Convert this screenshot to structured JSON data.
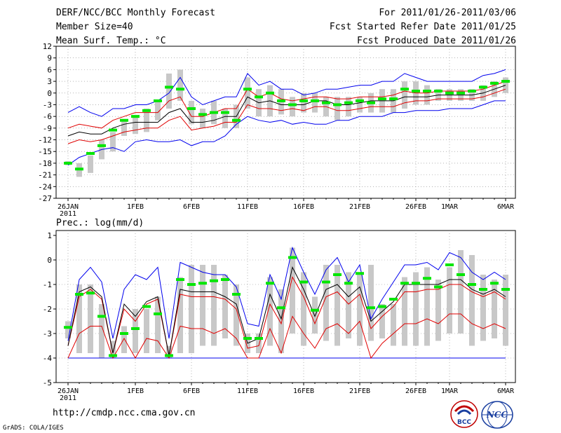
{
  "header": {
    "title": "DERF/NCC/BCC Monthly Forecast",
    "member_size": "Member Size=40",
    "variable": "Mean Surf. Temp.: °C",
    "forecast_period": "For 2011/01/26-2011/03/06",
    "started_refer": "Fcst Started Refer Date 2011/01/25",
    "produced": "Fcst Produced Date 2011/01/26"
  },
  "footer": {
    "url": "http://cmdp.ncc.cma.gov.cn",
    "credit": "GrADS: COLA/IGES",
    "logo_bcc": "BCC",
    "logo_ncc": "NCC"
  },
  "colors": {
    "box": "#c8c8c8",
    "median": "#00e600",
    "mean": "#000000",
    "spread": "#e00000",
    "extreme": "#0000ee",
    "grid": "#888888"
  },
  "chart_data": [
    {
      "type": "ensemble-boxplot",
      "title": "Mean Surf. Temp.: °C",
      "ylabel": "°C",
      "ylim": [
        -27,
        12
      ],
      "yticks": [
        12,
        9,
        6,
        3,
        0,
        -3,
        -6,
        -9,
        -12,
        -15,
        -18,
        -21,
        -24,
        -27
      ],
      "xticks": [
        {
          "day": 0,
          "label": "26JAN",
          "sub": "2011"
        },
        {
          "day": 6,
          "label": "1FEB"
        },
        {
          "day": 11,
          "label": "6FEB"
        },
        {
          "day": 16,
          "label": "11FEB"
        },
        {
          "day": 21,
          "label": "16FEB"
        },
        {
          "day": 26,
          "label": "21FEB"
        },
        {
          "day": 31,
          "label": "26FEB"
        },
        {
          "day": 34,
          "label": "1MAR"
        },
        {
          "day": 39,
          "label": "6MAR"
        }
      ],
      "box_low": [
        -18.5,
        -21.5,
        -20.5,
        -17,
        -15,
        -11,
        -10.5,
        -10,
        -7,
        -4,
        -2,
        -8,
        -9,
        -8,
        -9,
        -9,
        -4,
        -6,
        -6,
        -5.5,
        -6,
        -5,
        -5,
        -6,
        -7,
        -6,
        -5,
        -5,
        -5,
        -5,
        -4,
        -3,
        -3,
        -2,
        -2,
        -2,
        -2,
        -2,
        -1,
        0
      ],
      "box_high": [
        -17.5,
        -18,
        -16,
        -12,
        -10,
        -7,
        -6,
        -4,
        -2,
        5,
        6,
        -2,
        -4,
        -2,
        -4,
        -3,
        4,
        1,
        2,
        1,
        -1,
        0,
        0,
        -1,
        -1,
        -1,
        -1,
        0,
        1,
        1,
        3,
        3,
        2,
        1,
        1,
        1,
        1,
        2,
        3,
        4
      ],
      "median": [
        -18,
        -19.5,
        -15.5,
        -13.5,
        -9.5,
        -7,
        -6,
        -4.5,
        -2,
        1.5,
        1,
        -4,
        -5.5,
        -5,
        -5,
        -7,
        1,
        -1,
        0,
        -2,
        -3,
        -2,
        -2,
        -2.5,
        -3,
        -2.5,
        -2,
        -2.5,
        -1.5,
        -1.5,
        1,
        0.5,
        0.5,
        0.5,
        0,
        0,
        0.5,
        1.5,
        2.5,
        3
      ],
      "mean": [
        -11,
        -10,
        -10.5,
        -10.5,
        -9,
        -8,
        -7.5,
        -7.5,
        -7.5,
        -5,
        -4,
        -7.5,
        -7.5,
        -7,
        -6,
        -6,
        -1,
        -2.5,
        -2,
        -3,
        -3,
        -3,
        -2,
        -2,
        -3,
        -3,
        -2.5,
        -2,
        -2,
        -2,
        -1,
        -1,
        -1,
        -0.5,
        -0.5,
        -0.5,
        -0.5,
        0,
        1,
        2
      ],
      "spread_high": [
        -9,
        -8,
        -8.5,
        -9,
        -7,
        -6,
        -5,
        -5,
        -5,
        -2,
        -1,
        -6,
        -6,
        -5,
        -4,
        -4,
        1,
        -1,
        0,
        -1.5,
        -2,
        -1.5,
        -1,
        -1,
        -1.5,
        -1.5,
        -1,
        -1,
        -1,
        -0.5,
        0.5,
        0,
        0,
        0.5,
        0.5,
        0.5,
        0.5,
        1,
        2,
        3
      ],
      "spread_low": [
        -13,
        -12,
        -12.5,
        -12,
        -11,
        -10,
        -9.5,
        -9,
        -9,
        -7,
        -6,
        -9.5,
        -9,
        -8.5,
        -7.5,
        -7.5,
        -3,
        -4,
        -4,
        -4.5,
        -4,
        -4.5,
        -3.5,
        -3.5,
        -4.5,
        -4.5,
        -4,
        -3.5,
        -3.5,
        -3.5,
        -2.5,
        -2,
        -2,
        -1.5,
        -1.5,
        -1.5,
        -1.5,
        -1,
        0,
        1
      ],
      "max_line": [
        -5,
        -3.5,
        -5,
        -6,
        -4,
        -4,
        -3,
        -3,
        -2,
        0,
        4,
        -1,
        -3,
        -2,
        -1,
        -1,
        5,
        2,
        3,
        1,
        1,
        -0.5,
        0,
        1,
        1,
        1.5,
        2,
        2,
        3,
        3,
        5,
        4,
        3,
        3,
        3,
        3,
        3,
        4.5,
        5,
        6
      ],
      "min_line": [
        -18.5,
        -16.5,
        -15.5,
        -14.5,
        -14,
        -15,
        -12.5,
        -12,
        -12.5,
        -12.5,
        -12,
        -13.5,
        -12.5,
        -12.5,
        -11,
        -8,
        -6,
        -7,
        -7.5,
        -7,
        -8,
        -7.5,
        -8,
        -8,
        -7,
        -7,
        -6,
        -6,
        -6,
        -5,
        -5,
        -4.5,
        -4.5,
        -4.5,
        -4,
        -4,
        -4,
        -3,
        -2,
        -2
      ]
    },
    {
      "type": "ensemble-boxplot",
      "title": "Prec.: log(mm/d)",
      "ylabel": "log(mm/d)",
      "ylim": [
        -5,
        1.2
      ],
      "yticks": [
        1,
        0,
        -1,
        -2,
        -3,
        -4,
        -5
      ],
      "xticks": [
        {
          "day": 0,
          "label": "26JAN",
          "sub": "2011"
        },
        {
          "day": 6,
          "label": "1FEB"
        },
        {
          "day": 11,
          "label": "6FEB"
        },
        {
          "day": 16,
          "label": "11FEB"
        },
        {
          "day": 21,
          "label": "16FEB"
        },
        {
          "day": 26,
          "label": "21FEB"
        },
        {
          "day": 31,
          "label": "26FEB"
        },
        {
          "day": 34,
          "label": "1MAR"
        },
        {
          "day": 39,
          "label": "6MAR"
        }
      ],
      "box_low": [
        -3.2,
        -3.8,
        -3.8,
        -4,
        -4,
        -3.8,
        -3.8,
        -3.8,
        -3.8,
        -4,
        -3.8,
        -3.8,
        -3.5,
        -3.5,
        -3.2,
        -3.5,
        -3.8,
        -3.8,
        -3.5,
        -3.8,
        -3,
        -3.5,
        -3,
        -3.3,
        -3.5,
        -3.2,
        -3.5,
        -3.3,
        -3.2,
        -3.5,
        -3.5,
        -3.5,
        -3.5,
        -3.3,
        -3,
        -3,
        -3.5,
        -3.3,
        -3.2,
        -3.5
      ],
      "box_high": [
        -2.5,
        -1,
        -1,
        -1.8,
        -3.3,
        -2.7,
        -2,
        -2,
        -1.5,
        -3.5,
        -0.7,
        -0.2,
        -0.2,
        -0.2,
        -0.6,
        -1,
        -3,
        -3,
        -0.7,
        -1.2,
        0.5,
        -0.5,
        -1.5,
        -0.2,
        -0.2,
        -0.5,
        -0.6,
        -0.2,
        -1.8,
        -1.8,
        -0.7,
        -0.5,
        -0.3,
        -0.8,
        -0.3,
        0.4,
        0.2,
        -0.6,
        -0.8,
        -0.6
      ],
      "median": [
        -2.75,
        -1.4,
        -1.35,
        -2.3,
        -3.9,
        -3,
        -2.8,
        -1.9,
        -2.2,
        -3.9,
        -0.8,
        -1,
        -0.95,
        -0.85,
        -0.8,
        -1.4,
        -3.2,
        -3.2,
        -0.95,
        -1.95,
        0.1,
        -0.9,
        -2.05,
        -0.9,
        -0.6,
        -0.95,
        -0.55,
        -1.95,
        -1.9,
        -1.6,
        -0.95,
        -0.95,
        -0.75,
        -1.1,
        -0.2,
        -0.6,
        -1,
        -1.2,
        -0.95,
        -1.2
      ],
      "mean": [
        -3.5,
        -1.3,
        -1.1,
        -1.5,
        -3.8,
        -1.8,
        -2.3,
        -1.7,
        -1.5,
        -3.9,
        -1.2,
        -1.3,
        -1.3,
        -1.3,
        -1.5,
        -1.8,
        -3.4,
        -3.2,
        -1.4,
        -2.4,
        -0.3,
        -1.2,
        -2.3,
        -1.2,
        -1,
        -1.5,
        -1.1,
        -2.5,
        -2.1,
        -1.7,
        -1,
        -1,
        -1,
        -1,
        -0.8,
        -0.8,
        -1.2,
        -1.4,
        -1.2,
        -1.5
      ],
      "spread_high": [
        -3.5,
        -1.5,
        -1.2,
        -1.6,
        -3.8,
        -2,
        -2.5,
        -1.8,
        -1.6,
        -3.9,
        -1.4,
        -1.5,
        -1.5,
        -1.5,
        -1.6,
        -2,
        -3.6,
        -3.5,
        -1.8,
        -2.6,
        -0.7,
        -1.5,
        -2.6,
        -1.5,
        -1.3,
        -1.8,
        -1.4,
        -2.8,
        -2.3,
        -1.9,
        -1.3,
        -1.3,
        -1.2,
        -1.2,
        -1,
        -1,
        -1.3,
        -1.5,
        -1.3,
        -1.6
      ],
      "spread_low": [
        -4,
        -3,
        -2.7,
        -2.7,
        -4,
        -3.2,
        -4,
        -3.2,
        -3.3,
        -4,
        -2.7,
        -2.8,
        -2.8,
        -3,
        -2.8,
        -3.2,
        -4,
        -4,
        -2.8,
        -3.8,
        -2.3,
        -3,
        -3.6,
        -2.8,
        -2.6,
        -3,
        -2.5,
        -4,
        -3.4,
        -3,
        -2.6,
        -2.6,
        -2.4,
        -2.6,
        -2.2,
        -2.2,
        -2.6,
        -2.8,
        -2.6,
        -2.8
      ],
      "max_line": [
        -3.3,
        -0.8,
        -0.3,
        -0.9,
        -3.2,
        -1.2,
        -0.6,
        -0.8,
        -0.3,
        -3.2,
        -0.1,
        -0.3,
        -0.5,
        -0.6,
        -0.6,
        -1.1,
        -2.6,
        -2.7,
        -0.6,
        -1.6,
        0.5,
        -0.5,
        -1.4,
        -0.4,
        0.1,
        -0.9,
        -0.2,
        -2.4,
        -1.6,
        -0.9,
        -0.2,
        -0.2,
        -0.1,
        -0.4,
        0.3,
        0.1,
        -0.5,
        -0.8,
        -0.5,
        -0.8
      ],
      "min_line": [
        -4,
        -4,
        -4,
        -4,
        -4,
        -4,
        -4,
        -4,
        -4,
        -4,
        -4,
        -4,
        -4,
        -4,
        -4,
        -4,
        -4,
        -4,
        -4,
        -4,
        -4,
        -4,
        -4,
        -4,
        -4,
        -4,
        -4,
        -4,
        -4,
        -4,
        -4,
        -4,
        -4,
        -4,
        -4,
        -4,
        -4,
        -4,
        -4,
        -4
      ]
    }
  ],
  "panel_labels": {
    "bottom_title": "Prec.: log(mm/d)"
  }
}
